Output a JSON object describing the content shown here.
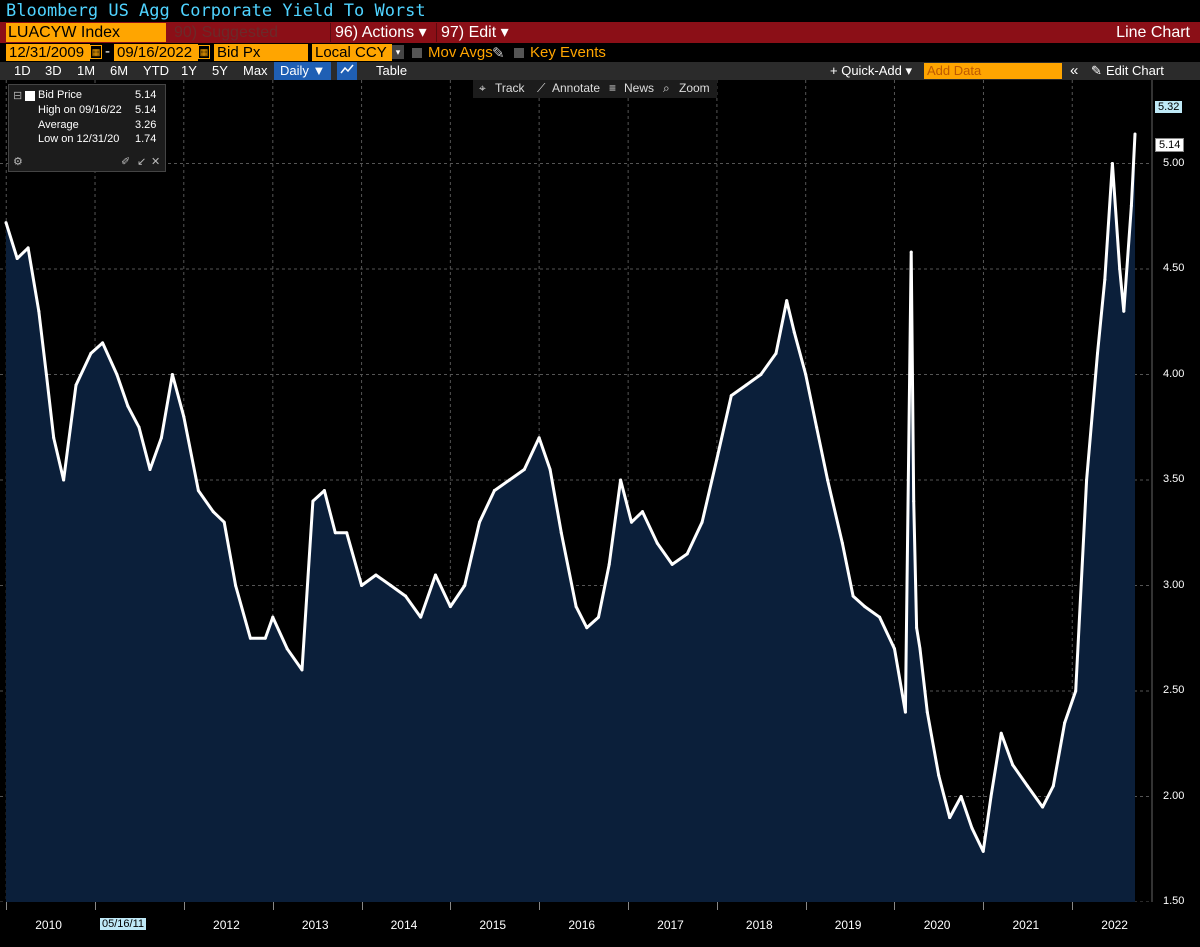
{
  "title": "Bloomberg US Agg Corporate Yield To Worst",
  "toolbar1": {
    "ticker": "LUACYW Index",
    "suggested": "90) Suggested Charts",
    "actions": "96) Actions ▾",
    "edit": "97) Edit ▾",
    "view_type": "Line Chart"
  },
  "toolbar2": {
    "start_date": "12/31/2009",
    "end_date": "09/16/2022",
    "field": "Bid Px",
    "currency": "Local CCY",
    "mov_avgs": "Mov Avgs",
    "key_events": "Key Events"
  },
  "toolbar3": {
    "ranges": [
      "1D",
      "3D",
      "1M",
      "6M",
      "YTD",
      "1Y",
      "5Y",
      "Max"
    ],
    "frequency": "Daily ▼",
    "table": "Table",
    "quick_add": "+ Quick-Add ▾",
    "add_data_placeholder": "Add Data",
    "collapse": "«",
    "edit_chart": "Edit Chart"
  },
  "tools": {
    "track": "Track",
    "annotate": "Annotate",
    "news": "News",
    "zoom": "Zoom"
  },
  "legend": {
    "series_label": "Bid Price",
    "series_value": "5.14",
    "high_label": "High on 09/16/22",
    "high_value": "5.14",
    "avg_label": "Average",
    "avg_value": "3.26",
    "low_label": "Low on 12/31/20",
    "low_value": "1.74"
  },
  "last_price_tag": "5.14",
  "top_tag": "5.32",
  "cursor_date_tag": "05/16/11",
  "colors": {
    "line": "#ffffff",
    "fill": "#0b1f3a",
    "accent_orange": "#ffa500",
    "title_cyan": "#4fd3ff",
    "toolbar_red": "#8b0f17"
  },
  "chart_data": {
    "type": "area",
    "ylim": [
      1.5,
      5.32
    ],
    "yticks": [
      "1.50",
      "2.00",
      "2.50",
      "3.00",
      "3.50",
      "4.00",
      "4.50",
      "5.00"
    ],
    "xlabels": [
      "2010",
      "2012",
      "2013",
      "2014",
      "2015",
      "2016",
      "2017",
      "2018",
      "2019",
      "2020",
      "2021",
      "2022"
    ],
    "grid": true,
    "x": [
      "2009-12-31",
      "2010-02-15",
      "2010-04-01",
      "2010-05-15",
      "2010-06-15",
      "2010-07-15",
      "2010-08-25",
      "2010-10-15",
      "2010-12-15",
      "2011-02-01",
      "2011-04-01",
      "2011-05-16",
      "2011-07-01",
      "2011-08-15",
      "2011-10-01",
      "2011-11-15",
      "2012-01-01",
      "2012-03-01",
      "2012-05-01",
      "2012-06-15",
      "2012-08-01",
      "2012-10-01",
      "2012-12-01",
      "2013-01-01",
      "2013-03-01",
      "2013-05-01",
      "2013-06-15",
      "2013-08-01",
      "2013-09-15",
      "2013-11-01",
      "2014-01-01",
      "2014-03-01",
      "2014-05-01",
      "2014-07-01",
      "2014-09-01",
      "2014-11-01",
      "2015-01-01",
      "2015-03-01",
      "2015-05-01",
      "2015-07-01",
      "2015-09-01",
      "2015-11-01",
      "2016-01-01",
      "2016-02-15",
      "2016-04-01",
      "2016-06-01",
      "2016-07-15",
      "2016-09-01",
      "2016-10-15",
      "2016-12-01",
      "2017-01-15",
      "2017-03-01",
      "2017-05-01",
      "2017-07-01",
      "2017-09-01",
      "2017-11-01",
      "2018-01-01",
      "2018-03-01",
      "2018-05-01",
      "2018-07-01",
      "2018-09-01",
      "2018-10-15",
      "2018-11-15",
      "2019-01-01",
      "2019-02-15",
      "2019-04-01",
      "2019-06-01",
      "2019-07-15",
      "2019-09-01",
      "2019-11-01",
      "2020-01-01",
      "2020-02-15",
      "2020-03-10",
      "2020-03-20",
      "2020-04-01",
      "2020-04-15",
      "2020-05-15",
      "2020-07-01",
      "2020-08-15",
      "2020-10-01",
      "2020-11-15",
      "2020-12-31",
      "2021-02-01",
      "2021-03-15",
      "2021-05-01",
      "2021-07-01",
      "2021-09-01",
      "2021-10-15",
      "2021-12-01",
      "2022-01-15",
      "2022-03-01",
      "2022-04-15",
      "2022-05-15",
      "2022-06-15",
      "2022-07-15",
      "2022-08-01",
      "2022-09-01",
      "2022-09-16"
    ],
    "series": [
      {
        "name": "Bid Price",
        "values": [
          4.72,
          4.55,
          4.6,
          4.3,
          4.0,
          3.7,
          3.5,
          3.95,
          4.1,
          4.15,
          4.0,
          3.85,
          3.75,
          3.55,
          3.7,
          4.0,
          3.8,
          3.45,
          3.35,
          3.3,
          3.0,
          2.75,
          2.75,
          2.85,
          2.7,
          2.6,
          3.4,
          3.45,
          3.25,
          3.25,
          3.0,
          3.05,
          3.0,
          2.95,
          2.85,
          3.05,
          2.9,
          3.0,
          3.3,
          3.45,
          3.5,
          3.55,
          3.7,
          3.55,
          3.25,
          2.9,
          2.8,
          2.85,
          3.1,
          3.5,
          3.3,
          3.35,
          3.2,
          3.1,
          3.15,
          3.3,
          3.6,
          3.9,
          3.95,
          4.0,
          4.1,
          4.35,
          4.2,
          4.0,
          3.75,
          3.5,
          3.2,
          2.95,
          2.9,
          2.85,
          2.7,
          2.4,
          4.58,
          3.4,
          2.8,
          2.7,
          2.4,
          2.1,
          1.9,
          2.0,
          1.85,
          1.74,
          2.0,
          2.3,
          2.15,
          2.05,
          1.95,
          2.05,
          2.35,
          2.5,
          3.5,
          4.1,
          4.45,
          5.0,
          4.5,
          4.3,
          4.8,
          5.14
        ]
      }
    ]
  }
}
